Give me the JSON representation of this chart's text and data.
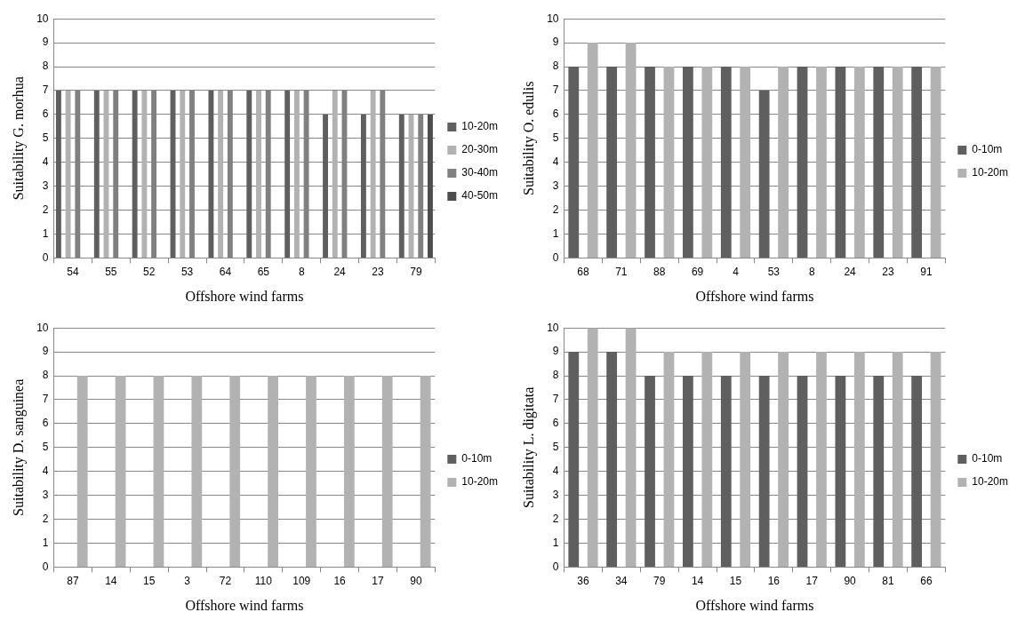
{
  "chart_data": [
    {
      "type": "bar",
      "xlabel": "Offshore wind farms",
      "ylabel": "Suitability G. morhua",
      "categories": [
        "54",
        "55",
        "52",
        "53",
        "64",
        "65",
        "8",
        "24",
        "23",
        "79"
      ],
      "series": [
        {
          "name": "10-20m",
          "color": "#5f5f5f",
          "values": [
            7,
            7,
            7,
            7,
            7,
            7,
            7,
            6,
            6,
            6
          ]
        },
        {
          "name": "20-30m",
          "color": "#b2b2b2",
          "values": [
            7,
            7,
            7,
            7,
            7,
            7,
            7,
            7,
            7,
            6
          ]
        },
        {
          "name": "30-40m",
          "color": "#808080",
          "values": [
            7,
            7,
            7,
            7,
            7,
            7,
            7,
            7,
            7,
            6
          ]
        },
        {
          "name": "40-50m",
          "color": "#4d4d4d",
          "values": [
            null,
            null,
            null,
            null,
            null,
            null,
            null,
            null,
            null,
            6
          ]
        }
      ],
      "ylim": [
        0,
        10
      ],
      "yticks": [
        0,
        1,
        2,
        3,
        4,
        5,
        6,
        7,
        8,
        9,
        10
      ],
      "grid": "y",
      "legend": "right"
    },
    {
      "type": "bar",
      "xlabel": "Offshore wind farms",
      "ylabel": "Suitability O. edulis",
      "categories": [
        "68",
        "71",
        "88",
        "69",
        "4",
        "53",
        "8",
        "24",
        "23",
        "91"
      ],
      "series": [
        {
          "name": "0-10m",
          "color": "#5f5f5f",
          "values": [
            8,
            8,
            8,
            8,
            8,
            7,
            8,
            8,
            8,
            8
          ]
        },
        {
          "name": "10-20m",
          "color": "#b2b2b2",
          "values": [
            9,
            9,
            8,
            8,
            8,
            8,
            8,
            8,
            8,
            8
          ]
        }
      ],
      "ylim": [
        0,
        10
      ],
      "yticks": [
        0,
        1,
        2,
        3,
        4,
        5,
        6,
        7,
        8,
        9,
        10
      ],
      "grid": "y",
      "legend": "right"
    },
    {
      "type": "bar",
      "xlabel": "Offshore wind farms",
      "ylabel": "Suitability D. sanguinea",
      "categories": [
        "87",
        "14",
        "15",
        "3",
        "72",
        "110",
        "109",
        "16",
        "17",
        "90"
      ],
      "series": [
        {
          "name": "0-10m",
          "color": "#5f5f5f",
          "values": [
            null,
            null,
            null,
            null,
            null,
            null,
            null,
            null,
            null,
            null
          ]
        },
        {
          "name": "10-20m",
          "color": "#b2b2b2",
          "values": [
            8,
            8,
            8,
            8,
            8,
            8,
            8,
            8,
            8,
            8
          ]
        }
      ],
      "ylim": [
        0,
        10
      ],
      "yticks": [
        0,
        1,
        2,
        3,
        4,
        5,
        6,
        7,
        8,
        9,
        10
      ],
      "grid": "y",
      "legend": "right"
    },
    {
      "type": "bar",
      "xlabel": "Offshore wind farms",
      "ylabel": "Suitability L. digitata",
      "categories": [
        "36",
        "34",
        "79",
        "14",
        "15",
        "16",
        "17",
        "90",
        "81",
        "66"
      ],
      "series": [
        {
          "name": "0-10m",
          "color": "#5f5f5f",
          "values": [
            9,
            9,
            8,
            8,
            8,
            8,
            8,
            8,
            8,
            8
          ]
        },
        {
          "name": "10-20m",
          "color": "#b2b2b2",
          "values": [
            10,
            10,
            9,
            9,
            9,
            9,
            9,
            9,
            9,
            9
          ]
        }
      ],
      "ylim": [
        0,
        10
      ],
      "yticks": [
        0,
        1,
        2,
        3,
        4,
        5,
        6,
        7,
        8,
        9,
        10
      ],
      "grid": "y",
      "legend": "right"
    }
  ]
}
